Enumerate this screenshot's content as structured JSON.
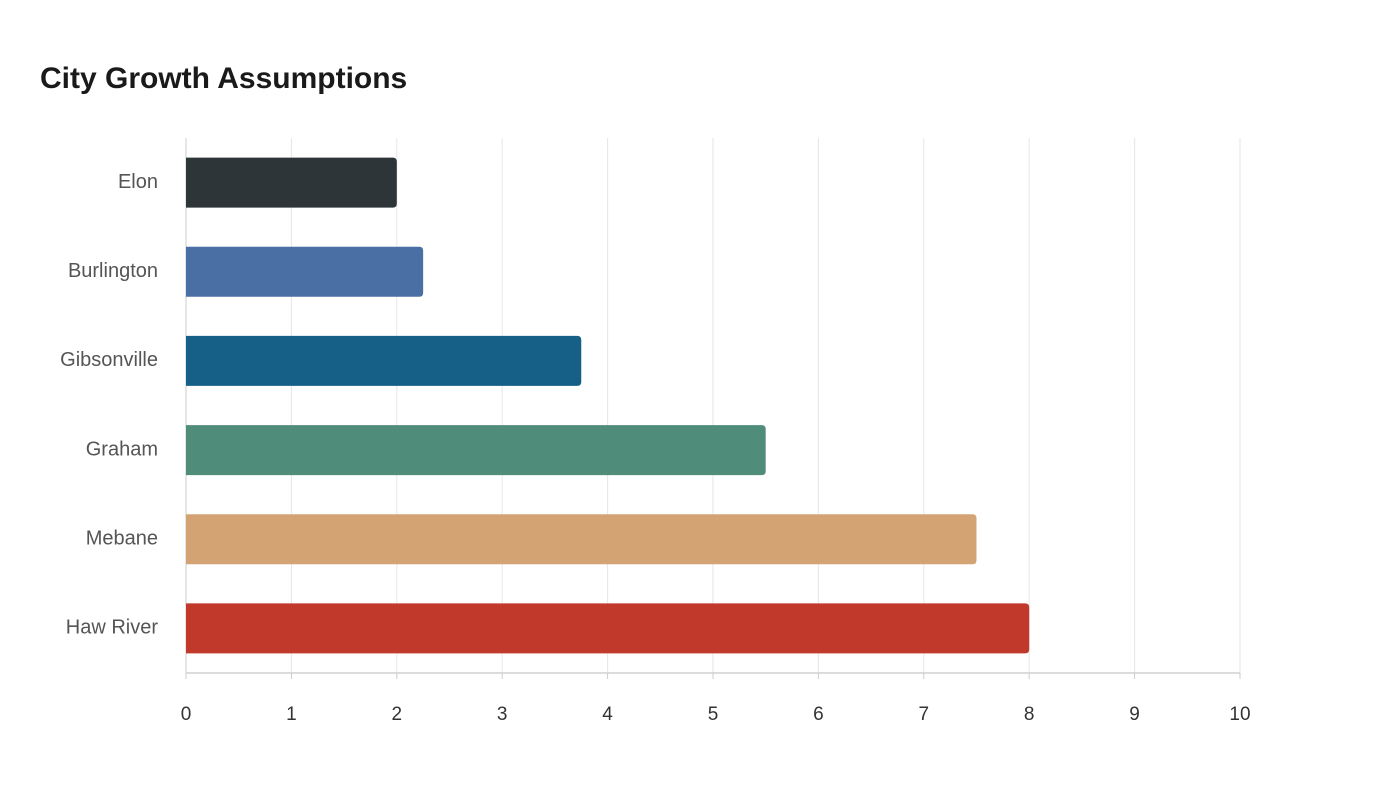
{
  "chart_data": {
    "type": "bar",
    "orientation": "horizontal",
    "title": "City Growth Assumptions",
    "categories": [
      "Elon",
      "Burlington",
      "Gibsonville",
      "Graham",
      "Mebane",
      "Haw River"
    ],
    "values": [
      2,
      2.25,
      3.75,
      5.5,
      7.5,
      8
    ],
    "colors": [
      "#2e3538",
      "#4a6fa5",
      "#166088",
      "#4f8c7a",
      "#d4a373",
      "#c0392b"
    ],
    "xlim": [
      0,
      10
    ],
    "xticks": [
      0,
      1,
      2,
      3,
      4,
      5,
      6,
      7,
      8,
      9,
      10
    ],
    "grid": true
  }
}
